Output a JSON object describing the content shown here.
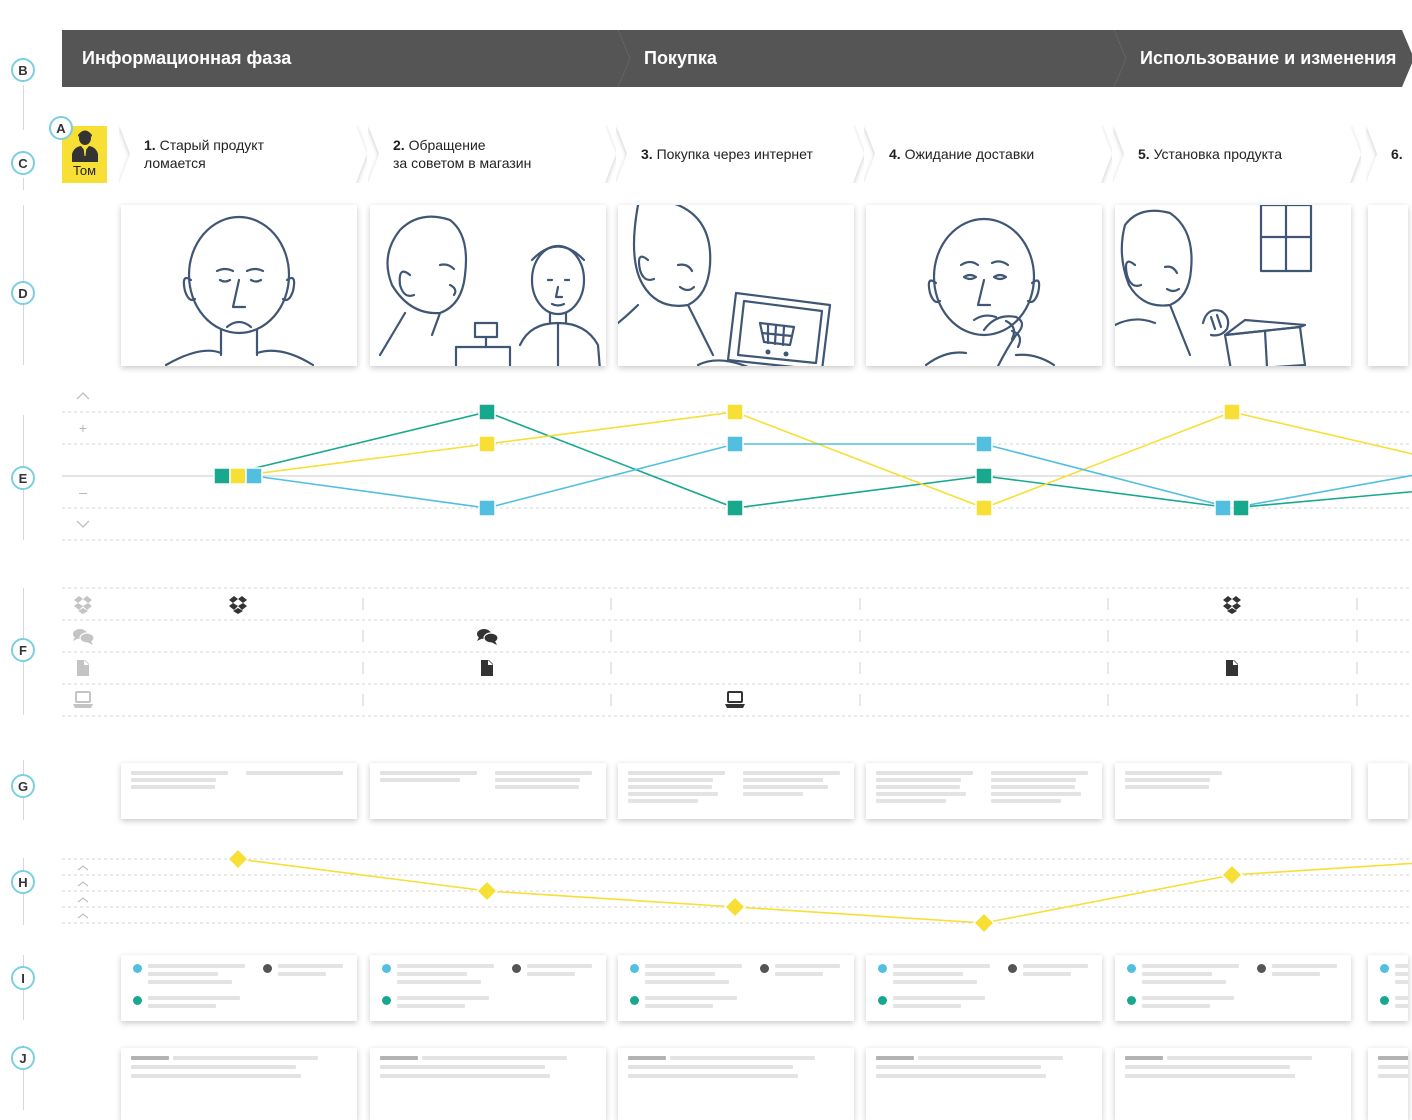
{
  "row_letters": [
    "A",
    "B",
    "C",
    "D",
    "E",
    "F",
    "G",
    "H",
    "I",
    "J"
  ],
  "phases": [
    {
      "label": "Информационная фаза"
    },
    {
      "label": "Покупка"
    },
    {
      "label": "Использование и изменения"
    }
  ],
  "persona": {
    "name": "Том",
    "icon": "person-suit-icon"
  },
  "steps": [
    {
      "number": "1.",
      "text": "Старый продукт\nломается"
    },
    {
      "number": "2.",
      "text": "Обращение\nза советом в магазин"
    },
    {
      "number": "3.",
      "text": "Покупка через интернет"
    },
    {
      "number": "4.",
      "text": "Ожидание доставки"
    },
    {
      "number": "5.",
      "text": "Установка продукта"
    },
    {
      "number": "6.",
      "text": ""
    }
  ],
  "illustrations": [
    {
      "subject": "sad-man-sketch"
    },
    {
      "subject": "man-talking-to-sales-clerk-sketch"
    },
    {
      "subject": "man-shopping-on-laptop-sketch"
    },
    {
      "subject": "thinking-man-sketch"
    },
    {
      "subject": "man-unpacking-box-sketch"
    }
  ],
  "emotion_axis": {
    "levels": [
      "^",
      "+",
      "–",
      "v"
    ],
    "level_values": [
      2,
      1,
      -1,
      -2
    ]
  },
  "channels": {
    "icons": [
      "dropbox-icon",
      "chat-bubbles-icon",
      "document-icon",
      "laptop-icon"
    ],
    "usage": [
      {
        "step": 1,
        "channel": "dropbox-icon"
      },
      {
        "step": 2,
        "channel": "chat-bubbles-icon"
      },
      {
        "step": 2,
        "channel": "document-icon"
      },
      {
        "step": 3,
        "channel": "laptop-icon"
      },
      {
        "step": 5,
        "channel": "dropbox-icon"
      },
      {
        "step": 5,
        "channel": "document-icon"
      }
    ]
  },
  "colors": {
    "phase_bg": "#555555",
    "yellow": "#f7df36",
    "teal": "#18a88e",
    "blue": "#52bfe0",
    "letter_ring": "#7ccfe0"
  },
  "chart_data": [
    {
      "type": "line",
      "x": [
        1,
        2,
        3,
        4,
        5,
        6
      ],
      "ylim": [
        -2,
        2
      ],
      "grid": true,
      "series": [
        {
          "color": "teal",
          "values": [
            0,
            2,
            -1,
            0,
            -1,
            -0.3
          ]
        },
        {
          "color": "yellow",
          "values": [
            0,
            1,
            2,
            -1,
            2,
            0.2
          ]
        },
        {
          "color": "blue",
          "values": [
            0,
            -1,
            1,
            1,
            -1,
            0.4
          ]
        }
      ]
    },
    {
      "type": "line",
      "x": [
        1,
        2,
        3,
        4,
        5,
        6
      ],
      "ylim": [
        0,
        4
      ],
      "grid": true,
      "series": [
        {
          "color": "yellow",
          "marker": "diamond",
          "values": [
            4,
            2,
            1,
            0,
            3,
            4
          ]
        }
      ]
    }
  ]
}
